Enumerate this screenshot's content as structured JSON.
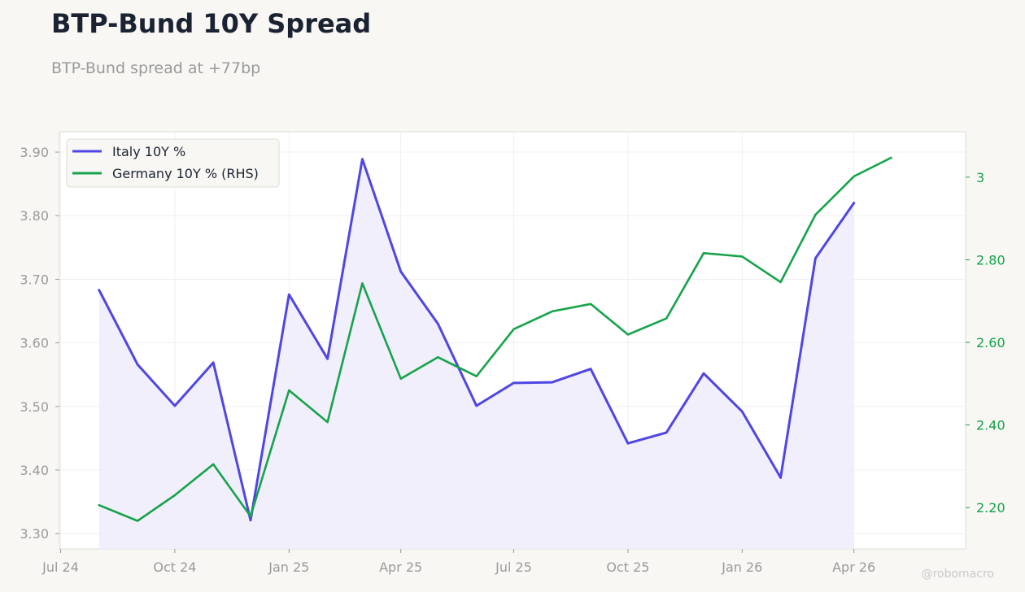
{
  "header": {
    "title": "BTP-Bund 10Y Spread",
    "subtitle": "BTP-Bund spread at +77bp"
  },
  "watermark": "@robomacro",
  "colors": {
    "italy": "#4f46e5",
    "italy_fill": "#efedfc",
    "germany": "#16a34a",
    "axis_text": "#9a9a9a",
    "grid": "#ececec",
    "plot_bg": "#ffffff",
    "frame": "#dcdcd4"
  },
  "chart_data": {
    "type": "line",
    "x_ticks": [
      {
        "date": "2024-07-01",
        "label": "Jul 24"
      },
      {
        "date": "2024-10-01",
        "label": "Oct 24"
      },
      {
        "date": "2025-01-01",
        "label": "Jan 25"
      },
      {
        "date": "2025-04-01",
        "label": "Apr 25"
      },
      {
        "date": "2025-07-01",
        "label": "Jul 25"
      },
      {
        "date": "2025-10-01",
        "label": "Oct 25"
      },
      {
        "date": "2026-01-01",
        "label": "Jan 26"
      },
      {
        "date": "2026-04-01",
        "label": "Apr 26"
      }
    ],
    "xlim": [
      "2024-06-30",
      "2026-06-30"
    ],
    "y_left": {
      "ylim": [
        3.276,
        3.932
      ],
      "ticks": [
        3.3,
        3.4,
        3.5,
        3.6,
        3.7,
        3.8,
        3.9
      ],
      "tick_labels": [
        "3.30",
        "3.40",
        "3.50",
        "3.60",
        "3.70",
        "3.80",
        "3.90"
      ]
    },
    "y_right": {
      "ylim": [
        2.1,
        3.11
      ],
      "ticks": [
        2.2,
        2.4,
        2.6,
        2.8,
        3.0
      ],
      "tick_labels": [
        "2.20",
        "2.40",
        "2.60",
        "2.80",
        "3"
      ]
    },
    "series": [
      {
        "name": "Italy 10Y %",
        "axis": "left",
        "filled": true,
        "points": [
          [
            "2024-08-01",
            3.683
          ],
          [
            "2024-09-01",
            3.566
          ],
          [
            "2024-10-01",
            3.501
          ],
          [
            "2024-11-01",
            3.569
          ],
          [
            "2024-12-01",
            3.321
          ],
          [
            "2025-01-01",
            3.676
          ],
          [
            "2025-02-01",
            3.575
          ],
          [
            "2025-03-01",
            3.889
          ],
          [
            "2025-04-01",
            3.712
          ],
          [
            "2025-05-01",
            3.63
          ],
          [
            "2025-06-01",
            3.501
          ],
          [
            "2025-07-01",
            3.537
          ],
          [
            "2025-08-01",
            3.538
          ],
          [
            "2025-09-01",
            3.559
          ],
          [
            "2025-10-01",
            3.442
          ],
          [
            "2025-11-01",
            3.459
          ],
          [
            "2025-12-01",
            3.552
          ],
          [
            "2026-01-01",
            3.492
          ],
          [
            "2026-02-01",
            3.388
          ],
          [
            "2026-03-01",
            3.733
          ],
          [
            "2026-04-01",
            3.82
          ]
        ]
      },
      {
        "name": "Germany 10Y % (RHS)",
        "axis": "right",
        "filled": false,
        "points": [
          [
            "2024-08-01",
            2.206
          ],
          [
            "2024-09-01",
            2.168
          ],
          [
            "2024-10-01",
            2.23
          ],
          [
            "2024-11-01",
            2.305
          ],
          [
            "2024-12-01",
            2.179
          ],
          [
            "2025-01-01",
            2.484
          ],
          [
            "2025-02-01",
            2.407
          ],
          [
            "2025-03-01",
            2.743
          ],
          [
            "2025-04-01",
            2.512
          ],
          [
            "2025-05-01",
            2.564
          ],
          [
            "2025-06-01",
            2.518
          ],
          [
            "2025-07-01",
            2.632
          ],
          [
            "2025-08-01",
            2.675
          ],
          [
            "2025-09-01",
            2.693
          ],
          [
            "2025-10-01",
            2.619
          ],
          [
            "2025-11-01",
            2.658
          ],
          [
            "2025-12-01",
            2.816
          ],
          [
            "2026-01-01",
            2.808
          ],
          [
            "2026-02-01",
            2.746
          ],
          [
            "2026-03-01",
            2.909
          ],
          [
            "2026-04-01",
            3.002
          ],
          [
            "2026-05-01",
            3.047
          ]
        ]
      }
    ],
    "legend": "top-left",
    "grid": true
  }
}
